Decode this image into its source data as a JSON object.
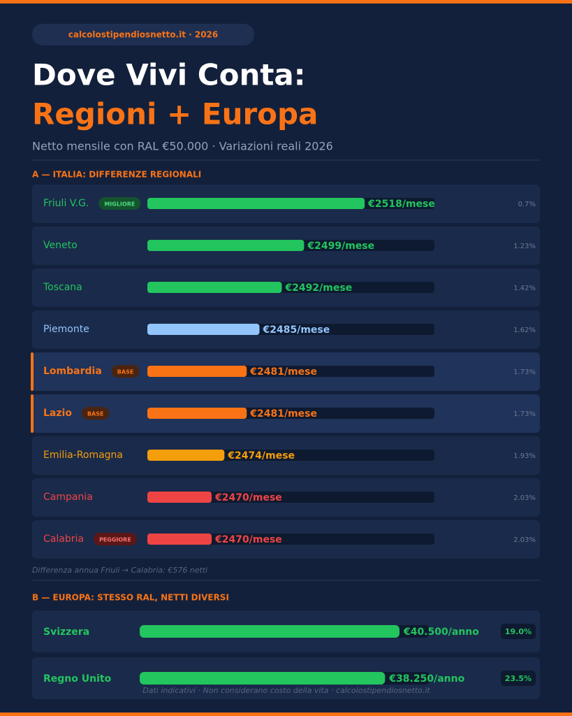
{
  "header": {
    "pill": "calcolostipendiosnetto.it · 2026",
    "title_line1": "Dove Vivi Conta:",
    "title_line2": "Regioni + Europa",
    "subtitle": "Netto mensile con RAL €50.000 · Variazioni reali 2026"
  },
  "section_a": {
    "label": "A — ITALIA: DIFFERENZE REGIONALI",
    "rows": [
      {
        "name": "Friuli V.G.",
        "badge": "MIGLIORE",
        "value": 2518,
        "value_label": "€2518/mese",
        "pct": "0.7%",
        "color": "#22c55e"
      },
      {
        "name": "Veneto",
        "value": 2499,
        "value_label": "€2499/mese",
        "pct": "1.23%",
        "color": "#22c55e"
      },
      {
        "name": "Toscana",
        "value": 2492,
        "value_label": "€2492/mese",
        "pct": "1.42%",
        "color": "#22c55e"
      },
      {
        "name": "Piemonte",
        "value": 2485,
        "value_label": "€2485/mese",
        "pct": "1.62%",
        "color": "#93c5fd"
      },
      {
        "name": "Lombardia",
        "badge": "BASE",
        "value": 2481,
        "value_label": "€2481/mese",
        "pct": "1.73%",
        "color": "#f97316"
      },
      {
        "name": "Lazio",
        "badge": "BASE",
        "value": 2481,
        "value_label": "€2481/mese",
        "pct": "1.73%",
        "color": "#f97316"
      },
      {
        "name": "Emilia-Romagna",
        "value": 2474,
        "value_label": "€2474/mese",
        "pct": "1.93%",
        "color": "#f59e0b"
      },
      {
        "name": "Campania",
        "value": 2470,
        "value_label": "€2470/mese",
        "pct": "2.03%",
        "color": "#ef4444"
      },
      {
        "name": "Calabria",
        "badge": "PEGGIORE",
        "value": 2470,
        "value_label": "€2470/mese",
        "pct": "2.03%",
        "color": "#ef4444"
      }
    ],
    "note": "Differenza annua Friuli → Calabria: €576 netti"
  },
  "section_b": {
    "label": "B — EUROPA: STESSO RAL, NETTI DIVERSI",
    "rows": [
      {
        "name": "Svizzera",
        "value": 40500,
        "value_label": "€40.500/anno",
        "pct": "19.0%",
        "color": "#22c55e"
      },
      {
        "name": "Regno Unito",
        "value": 38250,
        "value_label": "€38.250/anno",
        "pct": "23.5%",
        "color": "#22c55e"
      }
    ]
  },
  "footer": "Dati indicativi · Non considerano costo della vita · calcolostipendiosnetto.it"
}
